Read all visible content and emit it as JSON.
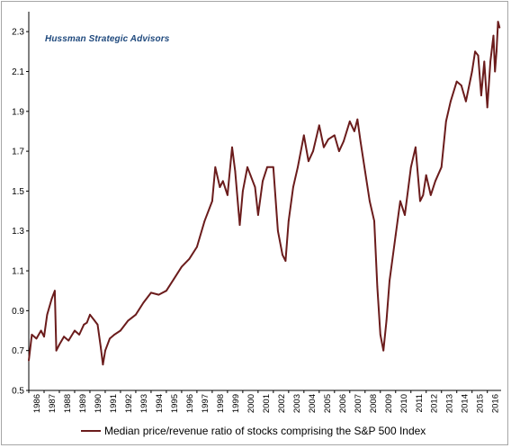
{
  "watermark": "Hussman Strategic Advisors",
  "chart_data": {
    "type": "line",
    "title": "",
    "xlabel": "",
    "ylabel": "",
    "ylim": [
      0.5,
      2.4
    ],
    "xlim": [
      1986.0,
      2016.9
    ],
    "y_ticks": [
      "0.5",
      "0.7",
      "0.9",
      "1.1",
      "1.3",
      "1.5",
      "1.7",
      "1.9",
      "2.1",
      "2.3"
    ],
    "x_ticks": [
      "1986",
      "1987",
      "1988",
      "1989",
      "1990",
      "1991",
      "1992",
      "1993",
      "1994",
      "1995",
      "1996",
      "1997",
      "1998",
      "1999",
      "2000",
      "2001",
      "2002",
      "2003",
      "2004",
      "2005",
      "2006",
      "2007",
      "2008",
      "2009",
      "2010",
      "2011",
      "2012",
      "2013",
      "2014",
      "2015",
      "2016"
    ],
    "grid": false,
    "legend": "bottom",
    "series": [
      {
        "name": "Median price/revenue ratio of stocks comprising the S&P 500 Index",
        "color": "#6b1c1c",
        "x": [
          1986.0,
          1986.2,
          1986.5,
          1986.8,
          1987.0,
          1987.2,
          1987.5,
          1987.7,
          1987.8,
          1988.0,
          1988.3,
          1988.6,
          1989.0,
          1989.3,
          1989.6,
          1989.8,
          1990.0,
          1990.3,
          1990.5,
          1990.7,
          1990.85,
          1991.0,
          1991.3,
          1991.6,
          1992.0,
          1992.5,
          1993.0,
          1993.5,
          1994.0,
          1994.5,
          1995.0,
          1995.5,
          1996.0,
          1996.5,
          1997.0,
          1997.5,
          1998.0,
          1998.2,
          1998.5,
          1998.7,
          1999.0,
          1999.3,
          1999.5,
          1999.8,
          2000.0,
          2000.3,
          2000.5,
          2000.8,
          2001.0,
          2001.3,
          2001.6,
          2002.0,
          2002.3,
          2002.6,
          2002.8,
          2003.0,
          2003.3,
          2003.6,
          2004.0,
          2004.3,
          2004.6,
          2005.0,
          2005.3,
          2005.6,
          2006.0,
          2006.3,
          2006.6,
          2007.0,
          2007.3,
          2007.5,
          2007.7,
          2008.0,
          2008.3,
          2008.6,
          2008.8,
          2009.0,
          2009.2,
          2009.4,
          2009.6,
          2010.0,
          2010.3,
          2010.6,
          2011.0,
          2011.3,
          2011.6,
          2011.8,
          2012.0,
          2012.3,
          2012.6,
          2013.0,
          2013.3,
          2013.6,
          2014.0,
          2014.3,
          2014.6,
          2015.0,
          2015.2,
          2015.4,
          2015.6,
          2015.8,
          2016.0,
          2016.2,
          2016.4,
          2016.5,
          2016.6,
          2016.7,
          2016.8
        ],
        "values": [
          0.65,
          0.78,
          0.76,
          0.8,
          0.77,
          0.88,
          0.96,
          1.0,
          0.7,
          0.73,
          0.77,
          0.75,
          0.8,
          0.78,
          0.83,
          0.84,
          0.88,
          0.85,
          0.83,
          0.72,
          0.63,
          0.7,
          0.76,
          0.78,
          0.8,
          0.85,
          0.88,
          0.94,
          0.99,
          0.98,
          1.0,
          1.06,
          1.12,
          1.16,
          1.22,
          1.35,
          1.45,
          1.62,
          1.52,
          1.55,
          1.48,
          1.72,
          1.6,
          1.33,
          1.5,
          1.62,
          1.58,
          1.52,
          1.38,
          1.55,
          1.62,
          1.62,
          1.3,
          1.18,
          1.15,
          1.35,
          1.52,
          1.62,
          1.78,
          1.65,
          1.7,
          1.83,
          1.72,
          1.76,
          1.78,
          1.7,
          1.75,
          1.85,
          1.8,
          1.86,
          1.75,
          1.6,
          1.45,
          1.35,
          1.02,
          0.78,
          0.7,
          0.85,
          1.05,
          1.28,
          1.45,
          1.38,
          1.62,
          1.72,
          1.45,
          1.48,
          1.58,
          1.48,
          1.55,
          1.62,
          1.85,
          1.95,
          2.05,
          2.03,
          1.95,
          2.1,
          2.2,
          2.18,
          1.98,
          2.15,
          1.92,
          2.15,
          2.28,
          2.1,
          2.2,
          2.35,
          2.32
        ]
      }
    ]
  }
}
